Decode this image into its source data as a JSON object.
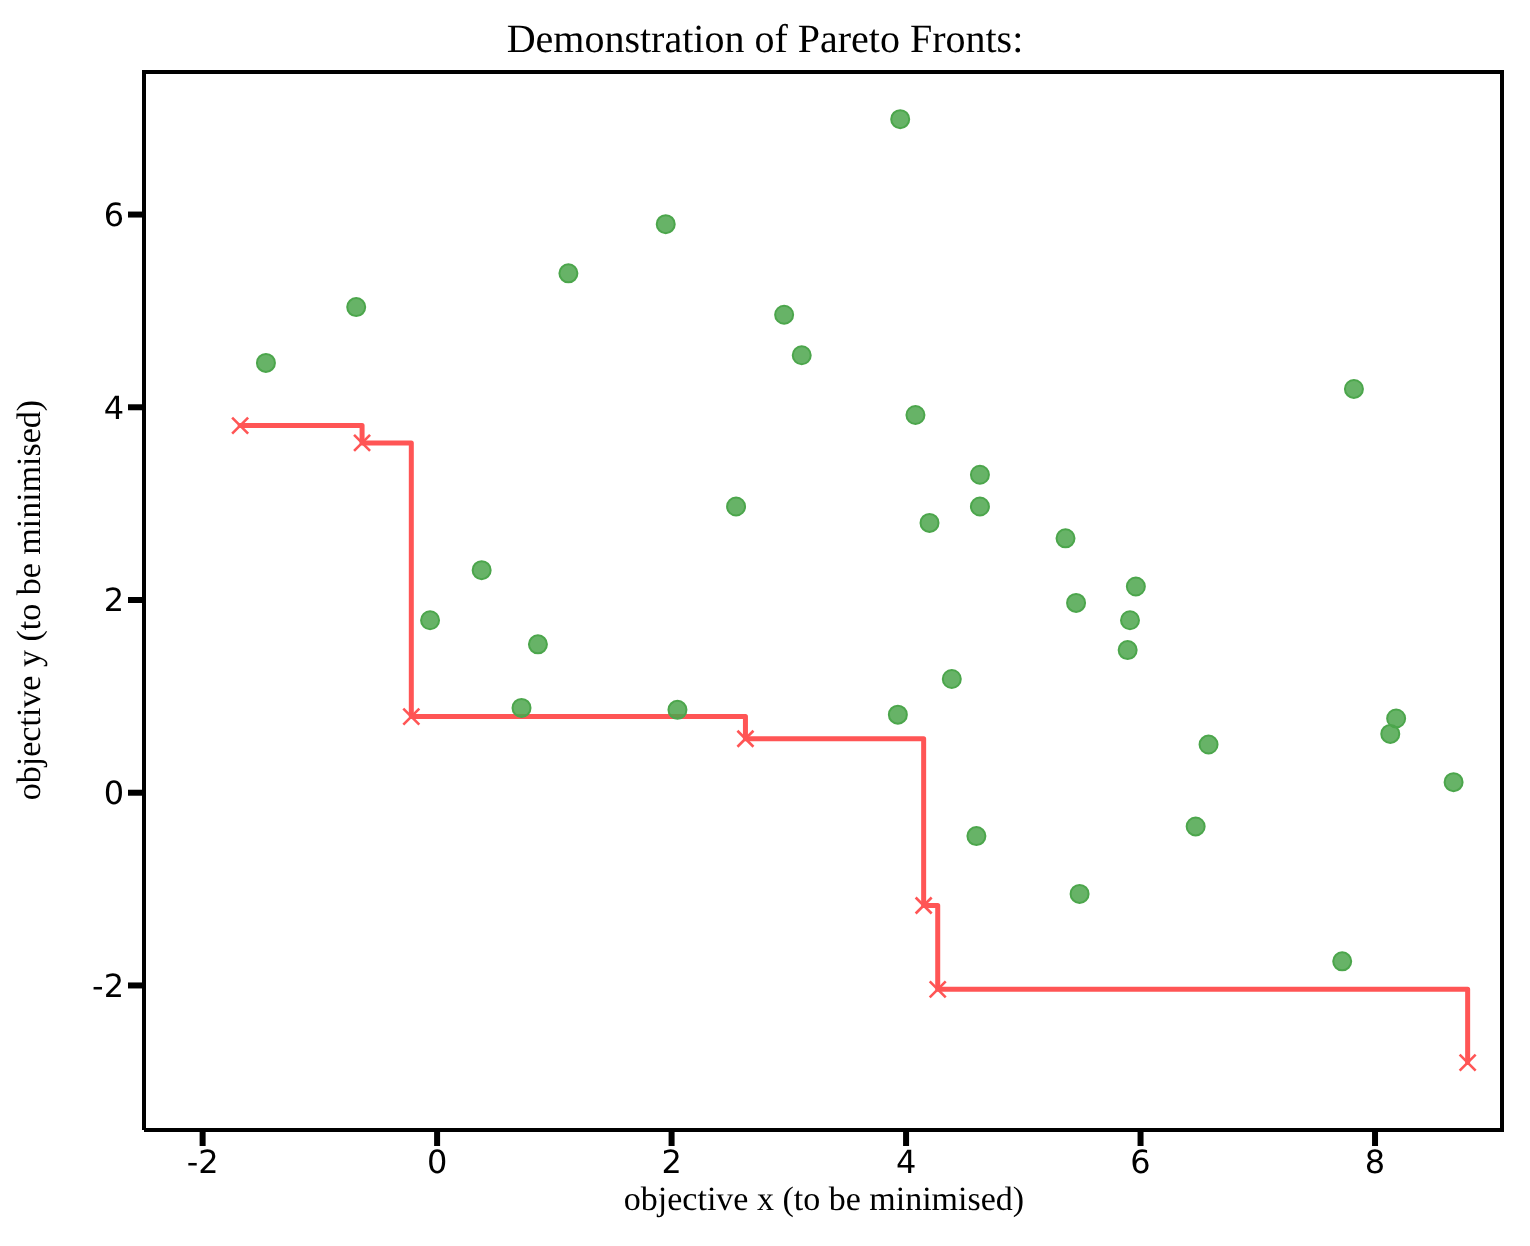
{
  "chart_data": {
    "type": "scatter",
    "title": "Demonstration of Pareto Fronts:",
    "xlabel": "objective x (to be minimised)",
    "ylabel": "objective y (to be minimised)",
    "xlim": [
      -2.5,
      9.1
    ],
    "ylim": [
      -3.5,
      7.5
    ],
    "xticks": [
      -2,
      0,
      2,
      4,
      6,
      8
    ],
    "yticks": [
      -2,
      0,
      2,
      4,
      6
    ],
    "grid": false,
    "legend": false,
    "series": [
      {
        "color": "#4ca64c",
        "marker": "circle",
        "x": [
          -1.46,
          -0.69,
          1.12,
          1.95,
          3.95,
          2.96,
          3.11,
          4.08,
          2.55,
          4.63,
          4.63,
          4.2,
          0.38,
          -0.06,
          0.86,
          0.72,
          2.05,
          3.93,
          4.39,
          5.36,
          5.45,
          5.91,
          5.96,
          5.89,
          6.58,
          4.6,
          5.48,
          6.47,
          7.82,
          8.18,
          8.13,
          8.67,
          7.72
        ],
        "values": [
          4.46,
          5.04,
          5.39,
          5.9,
          6.99,
          4.96,
          4.54,
          3.92,
          2.97,
          3.3,
          2.97,
          2.8,
          2.31,
          1.79,
          1.54,
          0.88,
          0.86,
          0.81,
          1.18,
          2.64,
          1.97,
          1.79,
          2.14,
          1.48,
          0.5,
          -0.45,
          -1.05,
          -0.35,
          4.19,
          0.77,
          0.61,
          0.11,
          -1.75
        ]
      },
      {
        "type": "step",
        "color": "#ff5555",
        "marker": "cross",
        "line_style": "solid",
        "x": [
          -1.68,
          -0.64,
          -0.22,
          2.63,
          4.15,
          4.27,
          8.79
        ],
        "values": [
          3.81,
          3.63,
          0.79,
          0.56,
          -1.17,
          -2.04,
          -2.8
        ]
      }
    ]
  }
}
